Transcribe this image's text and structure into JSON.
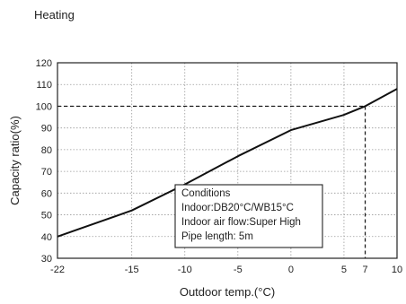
{
  "header": {
    "title": "Heating"
  },
  "chart_data": {
    "type": "line",
    "title": "Heating",
    "xlabel": "Outdoor temp.(°C)",
    "ylabel": "Capacity ratio(%)",
    "xlim": [
      -22,
      10
    ],
    "ylim": [
      30,
      120
    ],
    "xticks": [
      -22,
      -15,
      -10,
      -5,
      0,
      5,
      7,
      10
    ],
    "yticks": [
      30,
      40,
      50,
      60,
      70,
      80,
      90,
      100,
      110,
      120
    ],
    "grid": true,
    "series": [
      {
        "x": [
          -22,
          -15,
          -10,
          -5,
          0,
          5,
          7,
          10
        ],
        "y": [
          40,
          52,
          64,
          77,
          89,
          96,
          100,
          108
        ]
      }
    ],
    "reference_point": {
      "x": 7,
      "y": 100
    },
    "annotation": {
      "lines": [
        "Conditions",
        "Indoor:DB20°C/WB15°C",
        "Indoor air flow:Super High",
        "Pipe length: 5m"
      ]
    }
  }
}
